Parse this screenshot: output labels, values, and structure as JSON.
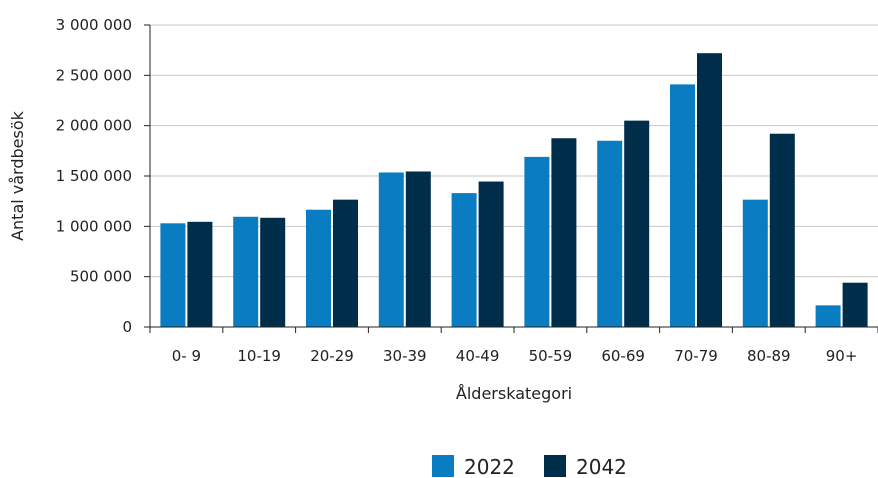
{
  "chart_data": {
    "type": "bar",
    "categories": [
      "0- 9",
      "10-19",
      "20-29",
      "30-39",
      "40-49",
      "50-59",
      "60-69",
      "70-79",
      "80-89",
      "90+"
    ],
    "series": [
      {
        "name": "2022",
        "color": "#0a7cc1",
        "values": [
          1030000,
          1095000,
          1165000,
          1535000,
          1330000,
          1690000,
          1850000,
          2410000,
          1265000,
          215000
        ]
      },
      {
        "name": "2042",
        "color": "#002d49",
        "values": [
          1045000,
          1085000,
          1265000,
          1545000,
          1445000,
          1875000,
          2050000,
          2720000,
          1920000,
          440000
        ]
      }
    ],
    "ylim": [
      0,
      3000000
    ],
    "yticks": [
      0,
      500000,
      1000000,
      1500000,
      2000000,
      2500000,
      3000000
    ],
    "ytick_labels": [
      "0",
      "500 000",
      "1 000 000",
      "1 500 000",
      "2 000 000",
      "2 500 000",
      "3 000 000"
    ],
    "xlabel": "Ålderskategori",
    "ylabel": "Antal vårdbesök",
    "grid": true,
    "legend_position": "bottom"
  }
}
